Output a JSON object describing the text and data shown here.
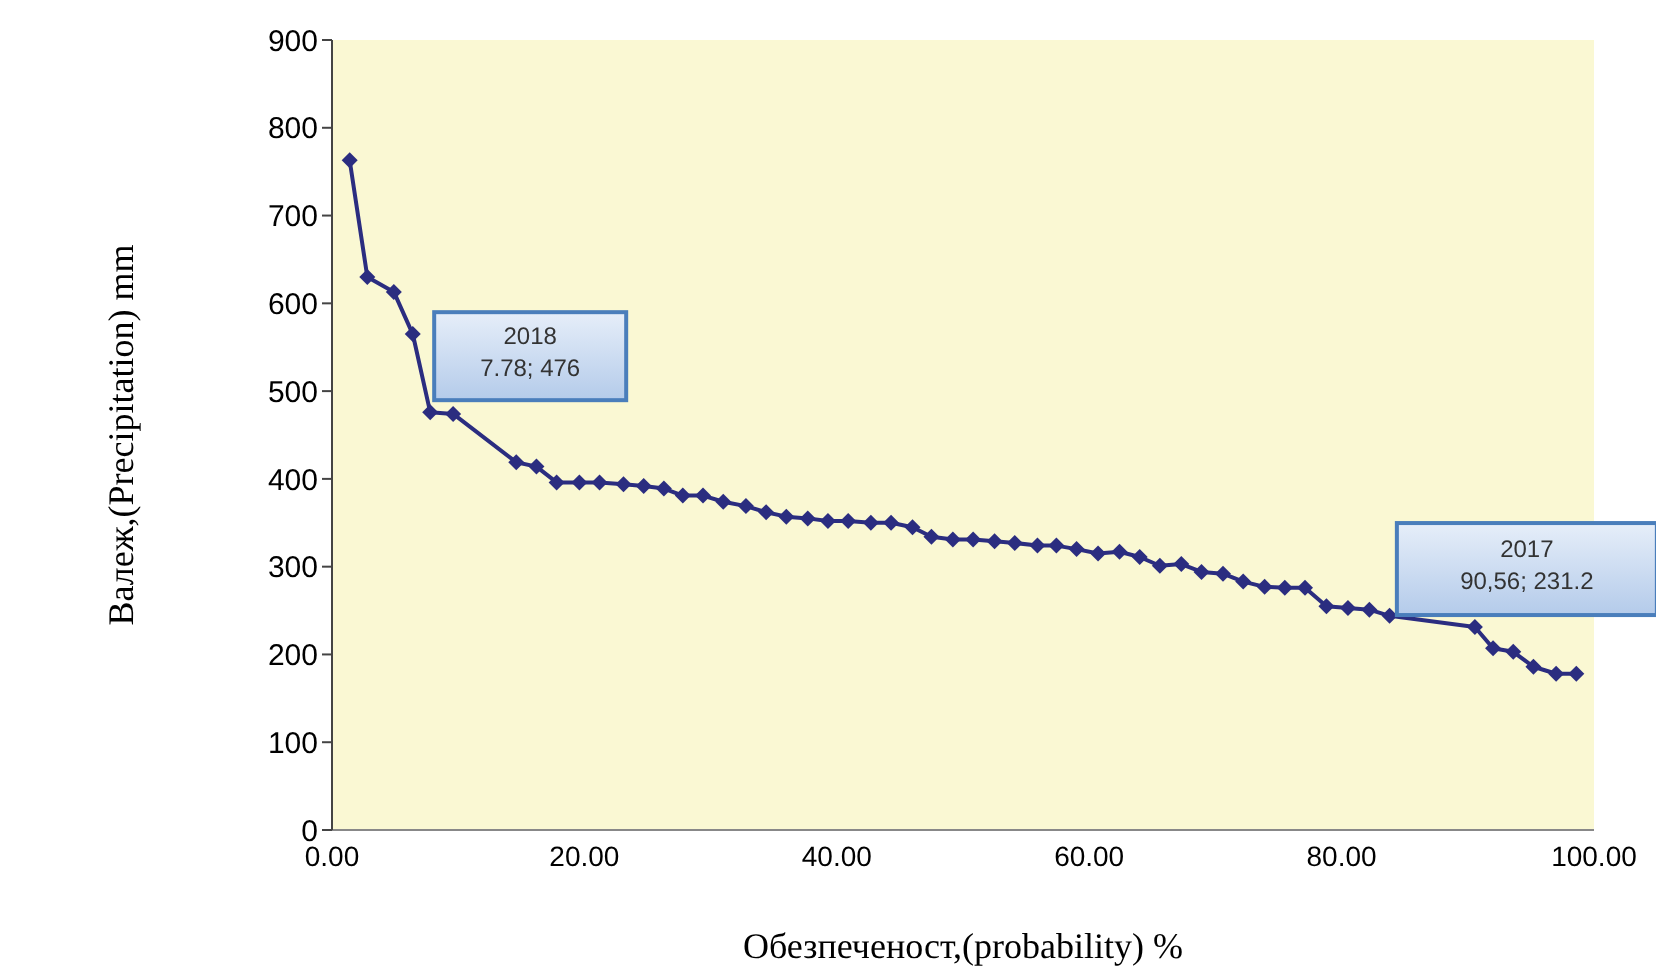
{
  "chart_data": {
    "type": "line",
    "xlabel": "Обезпеченост,(probability) %",
    "ylabel": "Валеж,(Precipitation) mm",
    "xlim": [
      0,
      100
    ],
    "xticks": [
      {
        "value": 0,
        "label": "0.00"
      },
      {
        "value": 20,
        "label": "20.00"
      },
      {
        "value": 40,
        "label": "40.00"
      },
      {
        "value": 60,
        "label": "60.00"
      },
      {
        "value": 80,
        "label": "80.00"
      },
      {
        "value": 100,
        "label": "100.00"
      }
    ],
    "ylim": [
      0,
      900
    ],
    "yticks": [
      0,
      100,
      200,
      300,
      400,
      500,
      600,
      700,
      800,
      900
    ],
    "grid": false,
    "legend": false,
    "marker": "diamond",
    "line_style": "solid",
    "series": [
      {
        "color": "#2b2d80",
        "x": [
          1.4,
          2.8,
          4.9,
          6.4,
          7.78,
          9.6,
          14.6,
          16.2,
          17.8,
          19.6,
          21.2,
          23.1,
          24.7,
          26.3,
          27.8,
          29.4,
          31.0,
          32.8,
          34.4,
          36.0,
          37.7,
          39.3,
          40.9,
          42.7,
          44.3,
          46.0,
          47.5,
          49.2,
          50.8,
          52.5,
          54.1,
          55.9,
          57.4,
          59.0,
          60.7,
          62.4,
          64.0,
          65.6,
          67.3,
          68.9,
          70.6,
          72.2,
          73.9,
          75.5,
          77.1,
          78.8,
          80.5,
          82.2,
          83.8,
          90.56,
          92.0,
          93.6,
          95.2,
          97.0,
          98.6
        ],
        "values": [
          763,
          630,
          613,
          565,
          476,
          474,
          419,
          414,
          396,
          396,
          396,
          394,
          392,
          389,
          381,
          381,
          374,
          369,
          362,
          357,
          355,
          352,
          352,
          350,
          350,
          345,
          334,
          331,
          331,
          329,
          327,
          324,
          324,
          320,
          315,
          317,
          311,
          301,
          303,
          294,
          292,
          283,
          277,
          276,
          276,
          255,
          253,
          251,
          244,
          231.2,
          207,
          203,
          186,
          178,
          178
        ]
      }
    ],
    "annotations": [
      {
        "text": "2018\n7.78; 476",
        "x": 7.78,
        "y": 476
      },
      {
        "text": "2017\n90,56; 231.2",
        "x": 90.56,
        "y": 231.2
      }
    ]
  }
}
